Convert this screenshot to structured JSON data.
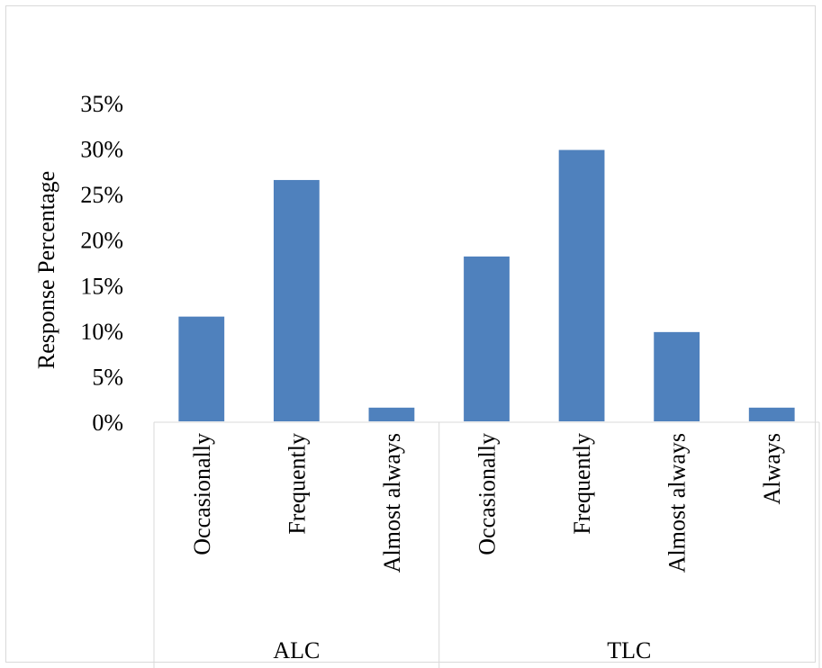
{
  "chart_data": {
    "type": "bar",
    "ylabel": "Response Percentage",
    "xlabel": "",
    "ylim": [
      0,
      0.35
    ],
    "yticks": [
      "0%",
      "5%",
      "10%",
      "15%",
      "20%",
      "25%",
      "30%",
      "35%"
    ],
    "groups": [
      {
        "name": "ALC",
        "categories": [
          "Occasionally",
          "Frequently",
          "Almost always"
        ],
        "values": [
          0.117,
          0.267,
          0.017
        ]
      },
      {
        "name": "TLC",
        "categories": [
          "Occasionally",
          "Frequently",
          "Almost always",
          "Always"
        ],
        "values": [
          0.183,
          0.3,
          0.1,
          0.017
        ]
      }
    ],
    "bar_color": "#4f81bd",
    "grid": false
  }
}
